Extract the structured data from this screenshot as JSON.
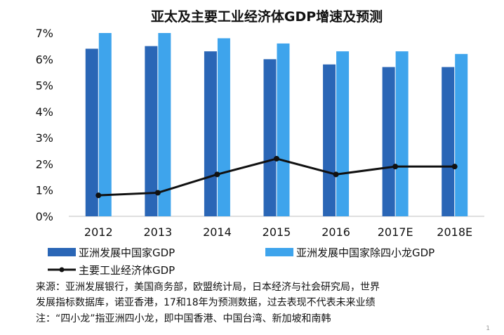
{
  "chart_data": {
    "type": "bar",
    "title": "亚太及主要工业经济体GDP增速及预测",
    "categories": [
      "2012",
      "2013",
      "2014",
      "2015",
      "2016",
      "2017E",
      "2018E"
    ],
    "ylim": [
      0,
      7
    ],
    "yticks": [
      "0%",
      "1%",
      "2%",
      "3%",
      "4%",
      "5%",
      "6%",
      "7%"
    ],
    "grid": false,
    "legend_position": "bottom",
    "series": [
      {
        "name": "亚洲发展中国家GDP",
        "type": "bar",
        "color": "#2a66b6",
        "values": [
          6.4,
          6.5,
          6.3,
          6.0,
          5.8,
          5.7,
          5.7
        ]
      },
      {
        "name": "亚洲发展中国家除四小龙GDP",
        "type": "bar",
        "color": "#3ea4ec",
        "values": [
          7.0,
          7.0,
          6.8,
          6.6,
          6.3,
          6.3,
          6.2
        ]
      },
      {
        "name": "主要工业经济体GDP",
        "type": "line",
        "color": "#111111",
        "values": [
          0.8,
          0.9,
          1.6,
          2.2,
          1.6,
          1.9,
          1.9
        ]
      }
    ]
  },
  "footnotes": {
    "source_line1": "来源：亚洲发展银行，美国商务部，欧盟统计局，日本经济与社会研究局，世界",
    "source_line2": "发展指标数据库，诺亚香港，17和18年为预测数据，过去表现不代表未来业绩",
    "note": "注：“四小龙”指亚洲四小龙，即中国香港、中国台湾、新加坡和南韩"
  },
  "page_marker": "1"
}
